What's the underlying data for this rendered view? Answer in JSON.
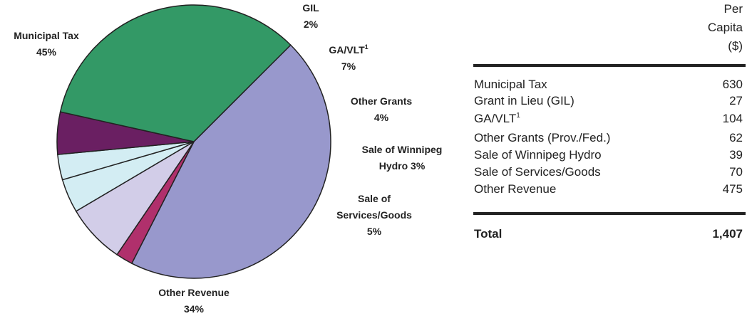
{
  "chart_data": {
    "type": "pie",
    "labels": [
      [
        "Municipal Tax"
      ],
      [
        "GIL"
      ],
      [
        "GA/VLT"
      ],
      [
        "Other Grants"
      ],
      [
        "Sale of Winnipeg",
        "Hydro"
      ],
      [
        "Sale of",
        "Services/Goods"
      ],
      [
        "Other Revenue"
      ]
    ],
    "values": [
      45,
      2,
      7,
      4,
      3,
      5,
      34
    ],
    "value_labels": [
      "45%",
      "2%",
      "7%",
      "4%",
      "3%",
      "5%",
      "34%"
    ],
    "colors": [
      "#9898cc",
      "#b0306c",
      "#d2cde8",
      "#d3edf3",
      "#d3edf3",
      "#6a1f62",
      "#339966"
    ]
  },
  "footnote_mark": "1",
  "table": {
    "header": [
      "Per",
      "Capita",
      "($)"
    ],
    "rows": [
      [
        "Municipal Tax",
        "630"
      ],
      [
        "Grant in Lieu (GIL)",
        "27"
      ],
      [
        "GA/VLT",
        "104"
      ],
      [
        "Other Grants (Prov./Fed.)",
        "62"
      ],
      [
        "Sale of Winnipeg Hydro",
        "39"
      ],
      [
        "Sale of Services/Goods",
        "70"
      ],
      [
        "Other Revenue",
        "475"
      ]
    ],
    "total": [
      "Total",
      "1,407"
    ]
  }
}
